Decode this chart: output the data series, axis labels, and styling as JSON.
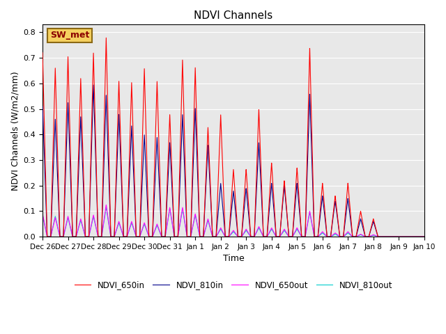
{
  "title": "NDVI Channels",
  "xlabel": "Time",
  "ylabel": "NDVI Channels (W/m2/mm)",
  "ylim": [
    0.0,
    0.83
  ],
  "xlim": [
    0,
    15
  ],
  "facecolor": "#e8e8e8",
  "label_box_text": "SW_met",
  "legend_labels": [
    "NDVI_650in",
    "NDVI_810in",
    "NDVI_650out",
    "NDVI_810out"
  ],
  "legend_colors": [
    "#ff0000",
    "#00008b",
    "#ff00ff",
    "#00cccc"
  ],
  "line_width": 0.8,
  "peaks": [
    {
      "d": 0.0,
      "a": 0.72,
      "b": 0.51,
      "c": 0.09,
      "e": 0.085
    },
    {
      "d": 0.5,
      "a": 0.66,
      "b": 0.46,
      "c": 0.075,
      "e": 0.08
    },
    {
      "d": 1.0,
      "a": 0.705,
      "b": 0.525,
      "c": 0.08,
      "e": 0.075
    },
    {
      "d": 1.5,
      "a": 0.62,
      "b": 0.47,
      "c": 0.07,
      "e": 0.065
    },
    {
      "d": 2.0,
      "a": 0.72,
      "b": 0.595,
      "c": 0.085,
      "e": 0.08
    },
    {
      "d": 2.5,
      "a": 0.78,
      "b": 0.555,
      "c": 0.125,
      "e": 0.115
    },
    {
      "d": 3.0,
      "a": 0.61,
      "b": 0.48,
      "c": 0.06,
      "e": 0.055
    },
    {
      "d": 3.5,
      "a": 0.605,
      "b": 0.435,
      "c": 0.06,
      "e": 0.055
    },
    {
      "d": 4.0,
      "a": 0.66,
      "b": 0.4,
      "c": 0.055,
      "e": 0.05
    },
    {
      "d": 4.5,
      "a": 0.61,
      "b": 0.39,
      "c": 0.05,
      "e": 0.045
    },
    {
      "d": 5.0,
      "a": 0.48,
      "b": 0.37,
      "c": 0.115,
      "e": 0.11
    },
    {
      "d": 5.5,
      "a": 0.695,
      "b": 0.48,
      "c": 0.115,
      "e": 0.11
    },
    {
      "d": 6.0,
      "a": 0.665,
      "b": 0.505,
      "c": 0.09,
      "e": 0.085
    },
    {
      "d": 6.5,
      "a": 0.43,
      "b": 0.36,
      "c": 0.07,
      "e": 0.065
    },
    {
      "d": 7.0,
      "a": 0.48,
      "b": 0.21,
      "c": 0.035,
      "e": 0.03
    },
    {
      "d": 7.5,
      "a": 0.265,
      "b": 0.18,
      "c": 0.025,
      "e": 0.02
    },
    {
      "d": 8.0,
      "a": 0.265,
      "b": 0.19,
      "c": 0.03,
      "e": 0.025
    },
    {
      "d": 8.5,
      "a": 0.5,
      "b": 0.37,
      "c": 0.04,
      "e": 0.035
    },
    {
      "d": 9.0,
      "a": 0.29,
      "b": 0.21,
      "c": 0.035,
      "e": 0.03
    },
    {
      "d": 9.5,
      "a": 0.22,
      "b": 0.2,
      "c": 0.03,
      "e": 0.025
    },
    {
      "d": 10.0,
      "a": 0.27,
      "b": 0.21,
      "c": 0.035,
      "e": 0.03
    },
    {
      "d": 10.5,
      "a": 0.74,
      "b": 0.56,
      "c": 0.1,
      "e": 0.095
    },
    {
      "d": 11.0,
      "a": 0.21,
      "b": 0.16,
      "c": 0.02,
      "e": 0.015
    },
    {
      "d": 11.5,
      "a": 0.16,
      "b": 0.14,
      "c": 0.015,
      "e": 0.01
    },
    {
      "d": 12.0,
      "a": 0.21,
      "b": 0.15,
      "c": 0.02,
      "e": 0.015
    },
    {
      "d": 12.5,
      "a": 0.1,
      "b": 0.07,
      "c": 0.01,
      "e": 0.008
    },
    {
      "d": 13.0,
      "a": 0.07,
      "b": 0.06,
      "c": 0.008,
      "e": 0.006
    }
  ],
  "xtick_labels": [
    "Dec 26",
    "Dec 27",
    "Dec 28",
    "Dec 29",
    "Dec 30",
    "Dec 31",
    "Jan 1",
    "Jan 2",
    "Jan 3",
    "Jan 4",
    "Jan 5",
    "Jan 6",
    "Jan 7",
    "Jan 8",
    "Jan 9",
    "Jan 10"
  ],
  "xtick_positions": [
    0,
    1,
    2,
    3,
    4,
    5,
    6,
    7,
    8,
    9,
    10,
    11,
    12,
    13,
    14,
    15
  ]
}
